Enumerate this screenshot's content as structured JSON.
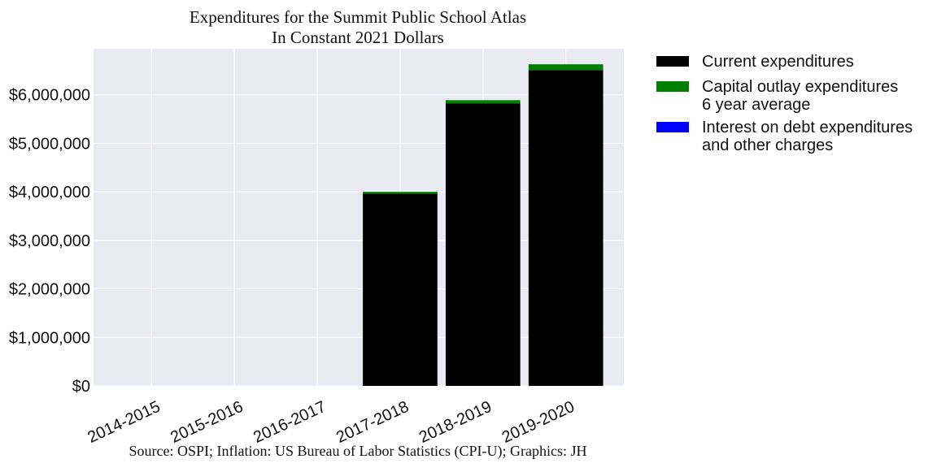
{
  "chart_data": {
    "type": "bar",
    "stacked": true,
    "title": "Expenditures for the Summit Public School Atlas",
    "subtitle": "In Constant 2021 Dollars",
    "xlabel": "",
    "ylabel": "",
    "categories": [
      "2014-2015",
      "2015-2016",
      "2016-2017",
      "2017-2018",
      "2018-2019",
      "2019-2020"
    ],
    "ylim": [
      0,
      6950000
    ],
    "yticks": [
      0,
      1000000,
      2000000,
      3000000,
      4000000,
      5000000,
      6000000
    ],
    "ytick_labels": [
      "$0",
      "$1,000,000",
      "$2,000,000",
      "$3,000,000",
      "$4,000,000",
      "$5,000,000",
      "$6,000,000"
    ],
    "grid": true,
    "legend_position": "right",
    "series": [
      {
        "name": "Current expenditures",
        "color": "#000000",
        "values": [
          0,
          0,
          0,
          3960000,
          5820000,
          6510000
        ]
      },
      {
        "name": "Capital outlay expenditures\n6 year average",
        "color": "#008000",
        "values": [
          0,
          0,
          0,
          40000,
          70000,
          120000
        ]
      },
      {
        "name": "Interest on debt expenditures\nand other charges",
        "color": "#0000ff",
        "values": [
          0,
          0,
          0,
          0,
          0,
          0
        ]
      }
    ],
    "source": "Source: OSPI; Inflation: US Bureau of Labor Statistics (CPI-U); Graphics: JH"
  }
}
